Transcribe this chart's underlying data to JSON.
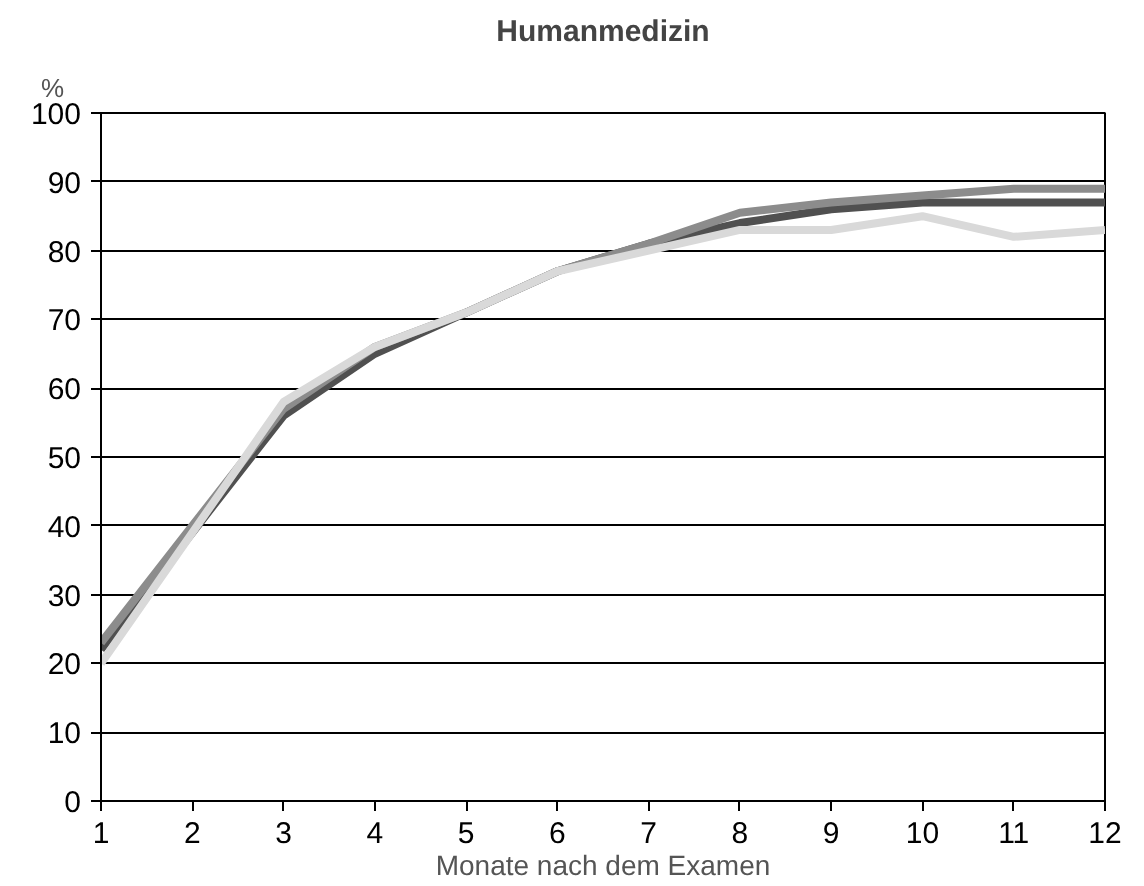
{
  "chart_data": {
    "type": "line",
    "title": "Humanmedizin",
    "xlabel": "Monate nach dem Examen",
    "ylabel": "%",
    "x": [
      1,
      2,
      3,
      4,
      5,
      6,
      7,
      8,
      9,
      10,
      11,
      12
    ],
    "series": [
      {
        "color": "#505050",
        "values": [
          22,
          39,
          56,
          65,
          71,
          77,
          81,
          84,
          86,
          87,
          87,
          87
        ]
      },
      {
        "color": "#8c8c8c",
        "values": [
          23,
          40,
          57,
          66,
          71,
          77,
          81,
          85.5,
          87,
          88,
          89,
          89
        ]
      },
      {
        "color": "#d9d9d9",
        "values": [
          20,
          39,
          58,
          66,
          71,
          77,
          80,
          83,
          83,
          85,
          82,
          83
        ]
      }
    ],
    "xlim": [
      1,
      12
    ],
    "xticks": [
      1,
      2,
      3,
      4,
      5,
      6,
      7,
      8,
      9,
      10,
      11,
      12
    ],
    "ylim": [
      0,
      100
    ],
    "yticks": [
      0,
      10,
      20,
      30,
      40,
      50,
      60,
      70,
      80,
      90,
      100
    ],
    "grid": "y",
    "marker": "none",
    "line_style": "solid"
  }
}
